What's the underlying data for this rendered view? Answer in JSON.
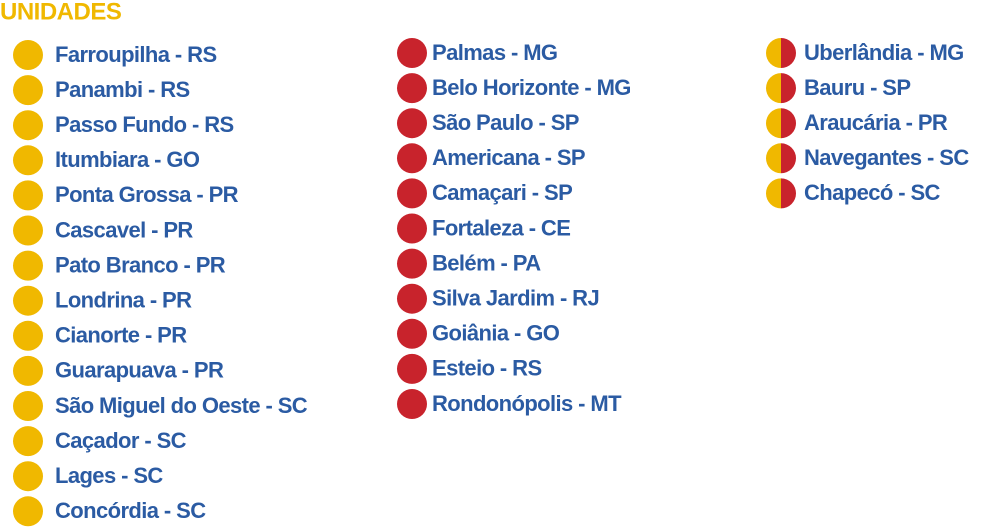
{
  "header": {
    "title": "UNIDADES",
    "color": "#f0b800"
  },
  "text_color": "#2b5ba3",
  "columns": [
    {
      "colors": [
        "#f0b800"
      ],
      "items": [
        "Farroupilha - RS",
        "Panambi - RS",
        "Passo Fundo - RS",
        "Itumbiara - GO",
        "Ponta Grossa - PR",
        "Cascavel - PR",
        "Pato Branco - PR",
        "Londrina - PR",
        "Cianorte - PR",
        "Guarapuava - PR",
        "São Miguel do Oeste - SC",
        "Caçador - SC",
        "Lages - SC",
        "Concórdia - SC"
      ]
    },
    {
      "colors": [
        "#c8232c"
      ],
      "items": [
        "Palmas - MG",
        "Belo Horizonte - MG",
        "São Paulo - SP",
        "Americana - SP",
        "Camaçari - SP",
        "Fortaleza - CE",
        "Belém - PA",
        "Silva Jardim - RJ",
        "Goiânia - GO",
        "Esteio - RS",
        "Rondonópolis - MT"
      ]
    },
    {
      "colors": [
        "#f0b800",
        "#c8232c"
      ],
      "items": [
        "Uberlândia - MG",
        "Bauru - SP",
        "Araucária - PR",
        "Navegantes - SC",
        "Chapecó - SC"
      ]
    }
  ]
}
